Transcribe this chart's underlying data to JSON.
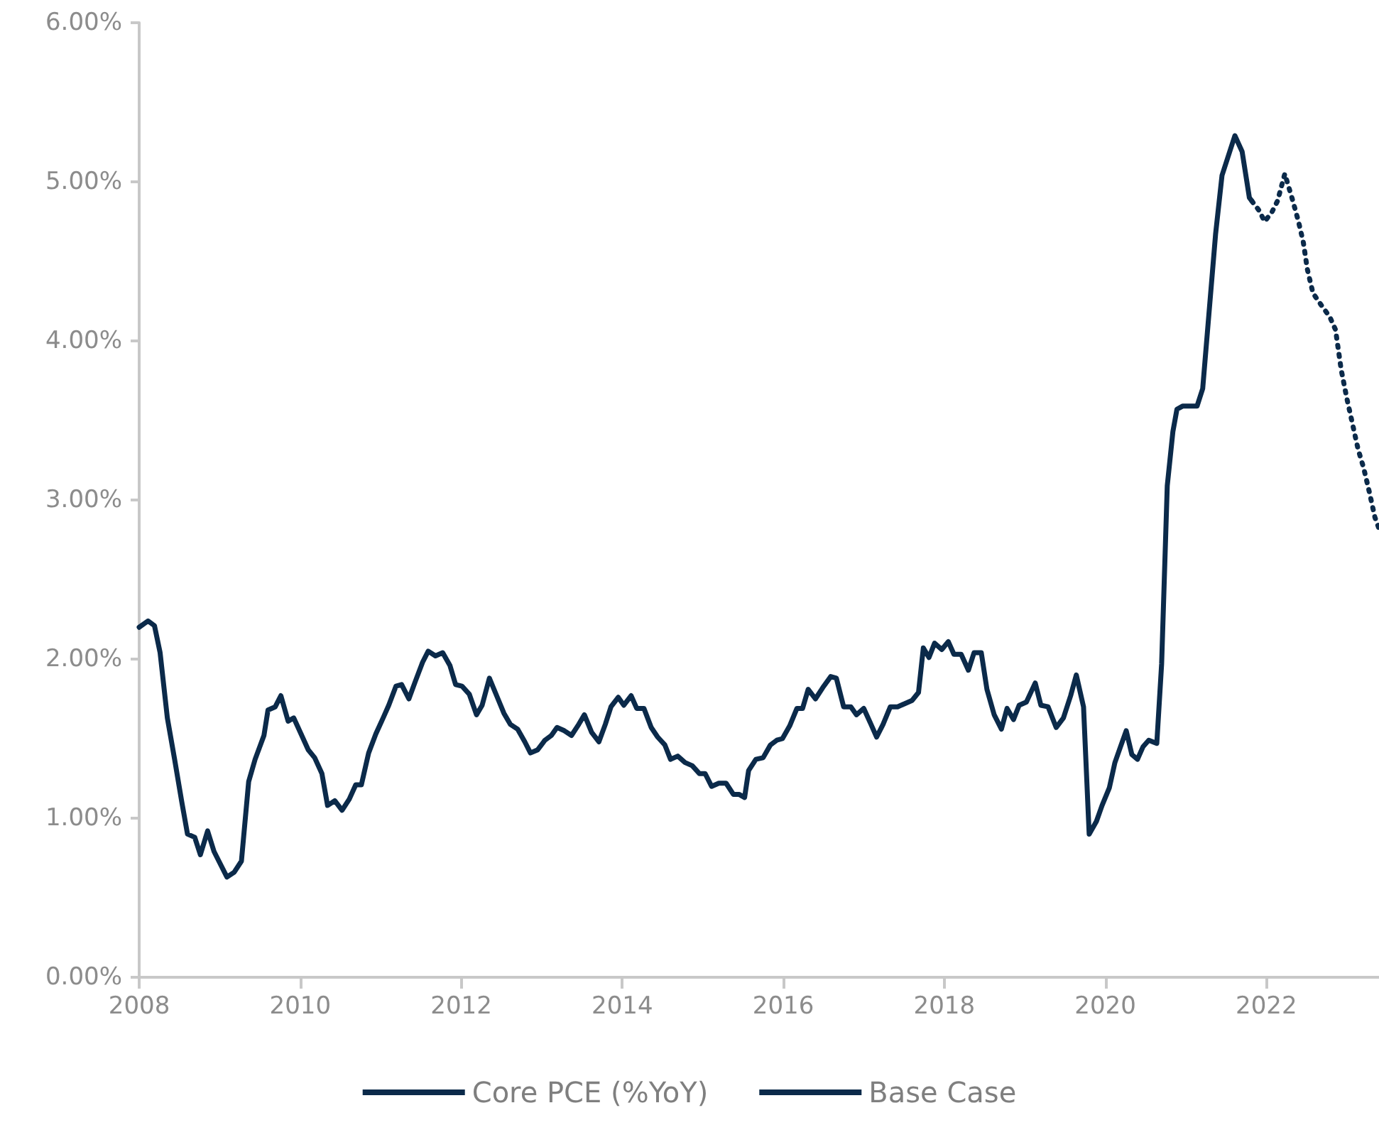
{
  "chart_data": {
    "type": "line",
    "xlim": [
      2008,
      2023.4
    ],
    "xticks": [
      2008,
      2010,
      2012,
      2014,
      2016,
      2018,
      2020,
      2022
    ],
    "ylim": [
      0,
      6
    ],
    "yticks": [
      {
        "value": 0,
        "label": "0.00%"
      },
      {
        "value": 1,
        "label": "1.00%"
      },
      {
        "value": 2,
        "label": "2.00%"
      },
      {
        "value": 3,
        "label": "3.00%"
      },
      {
        "value": 4,
        "label": "4.00%"
      },
      {
        "value": 5,
        "label": "5.00%"
      },
      {
        "value": 6,
        "label": "6.00%"
      }
    ],
    "grid": false,
    "legend": "bottom",
    "marker": "none",
    "series": [
      {
        "name": "Core PCE (%YoY)",
        "color": "#0b2a4a",
        "line_style": "solid",
        "x": [
          2008.0,
          2008.11,
          2008.19,
          2008.26,
          2008.35,
          2008.44,
          2008.53,
          2008.6,
          2008.69,
          2008.76,
          2008.85,
          2008.93,
          2009.09,
          2009.18,
          2009.27,
          2009.36,
          2009.44,
          2009.55,
          2009.6,
          2009.69,
          2009.76,
          2009.85,
          2009.92,
          2010.01,
          2010.1,
          2010.18,
          2010.27,
          2010.34,
          2010.43,
          2010.52,
          2010.61,
          2010.69,
          2010.76,
          2010.85,
          2010.94,
          2011.03,
          2011.1,
          2011.19,
          2011.26,
          2011.35,
          2011.43,
          2011.52,
          2011.59,
          2011.68,
          2011.77,
          2011.86,
          2011.93,
          2012.01,
          2012.1,
          2012.19,
          2012.26,
          2012.35,
          2012.44,
          2012.53,
          2012.61,
          2012.7,
          2012.79,
          2012.86,
          2012.95,
          2013.04,
          2013.12,
          2013.19,
          2013.28,
          2013.37,
          2013.46,
          2013.53,
          2013.62,
          2013.71,
          2013.79,
          2013.86,
          2013.95,
          2014.02,
          2014.11,
          2014.18,
          2014.27,
          2014.36,
          2014.44,
          2014.53,
          2014.6,
          2014.69,
          2014.78,
          2014.87,
          2014.96,
          2015.03,
          2015.11,
          2015.2,
          2015.29,
          2015.38,
          2015.45,
          2015.52,
          2015.57,
          2015.66,
          2015.75,
          2015.84,
          2015.92,
          2015.99,
          2016.08,
          2016.17,
          2016.24,
          2016.31,
          2016.4,
          2016.49,
          2016.59,
          2016.66,
          2016.75,
          2016.84,
          2016.91,
          2017.0,
          2017.09,
          2017.16,
          2017.24,
          2017.33,
          2017.42,
          2017.51,
          2017.6,
          2017.68,
          2017.74,
          2017.81,
          2017.88,
          2017.97,
          2018.05,
          2018.12,
          2018.21,
          2018.3,
          2018.37,
          2018.46,
          2018.53,
          2018.62,
          2018.71,
          2018.78,
          2018.86,
          2018.93,
          2019.02,
          2019.13,
          2019.2,
          2019.29,
          2019.39,
          2019.48,
          2019.57,
          2019.64,
          2019.73,
          2019.8,
          2019.89,
          2019.96,
          2020.05,
          2020.12,
          2020.19,
          2020.26,
          2020.33,
          2020.4,
          2020.47,
          2020.54,
          2020.64,
          2020.7,
          2020.77,
          2020.84,
          2020.89,
          2020.96,
          2021.14,
          2021.21,
          2021.37,
          2021.45,
          2021.61,
          2021.7,
          2021.79,
          2021.82
        ],
        "values": [
          2.2,
          2.24,
          2.21,
          2.04,
          1.63,
          1.37,
          1.1,
          0.9,
          0.88,
          0.77,
          0.92,
          0.79,
          0.63,
          0.66,
          0.73,
          1.23,
          1.37,
          1.52,
          1.68,
          1.7,
          1.77,
          1.61,
          1.63,
          1.53,
          1.43,
          1.38,
          1.28,
          1.08,
          1.11,
          1.05,
          1.12,
          1.21,
          1.21,
          1.41,
          1.53,
          1.63,
          1.71,
          1.83,
          1.84,
          1.75,
          1.86,
          1.98,
          2.05,
          2.02,
          2.04,
          1.96,
          1.84,
          1.83,
          1.78,
          1.65,
          1.71,
          1.88,
          1.77,
          1.66,
          1.59,
          1.56,
          1.48,
          1.41,
          1.43,
          1.49,
          1.52,
          1.57,
          1.55,
          1.52,
          1.59,
          1.65,
          1.54,
          1.48,
          1.59,
          1.7,
          1.76,
          1.71,
          1.77,
          1.69,
          1.69,
          1.57,
          1.51,
          1.46,
          1.37,
          1.39,
          1.35,
          1.33,
          1.28,
          1.28,
          1.2,
          1.22,
          1.22,
          1.15,
          1.15,
          1.13,
          1.3,
          1.37,
          1.38,
          1.46,
          1.49,
          1.5,
          1.58,
          1.69,
          1.69,
          1.81,
          1.75,
          1.82,
          1.89,
          1.88,
          1.7,
          1.7,
          1.65,
          1.69,
          1.59,
          1.51,
          1.59,
          1.7,
          1.7,
          1.72,
          1.74,
          1.79,
          2.07,
          2.01,
          2.1,
          2.06,
          2.11,
          2.03,
          2.03,
          1.93,
          2.04,
          2.04,
          1.81,
          1.65,
          1.56,
          1.69,
          1.62,
          1.71,
          1.73,
          1.85,
          1.71,
          1.7,
          1.57,
          1.63,
          1.77,
          1.9,
          1.7,
          0.9,
          0.98,
          1.08,
          1.19,
          1.35,
          1.45,
          1.55,
          1.4,
          1.37,
          1.45,
          1.49,
          1.47,
          1.97,
          3.09,
          3.43,
          3.57,
          3.59,
          3.59,
          3.7,
          4.67,
          5.04,
          5.29,
          5.19,
          4.9,
          4.88
        ]
      },
      {
        "name": "Base Case",
        "color": "#0b2a4a",
        "line_style": "dotted",
        "x": [
          2021.82,
          2021.91,
          2021.98,
          2022.07,
          2022.14,
          2022.23,
          2022.33,
          2022.4,
          2022.46,
          2022.51,
          2022.58,
          2022.69,
          2022.79,
          2022.86,
          2022.93,
          2023.0,
          2023.07,
          2023.14,
          2023.21,
          2023.28,
          2023.35,
          2023.4
        ],
        "values": [
          4.88,
          4.82,
          4.75,
          4.81,
          4.88,
          5.05,
          4.88,
          4.75,
          4.62,
          4.45,
          4.3,
          4.22,
          4.15,
          4.07,
          3.82,
          3.64,
          3.48,
          3.32,
          3.2,
          3.05,
          2.89,
          2.82
        ]
      }
    ]
  }
}
